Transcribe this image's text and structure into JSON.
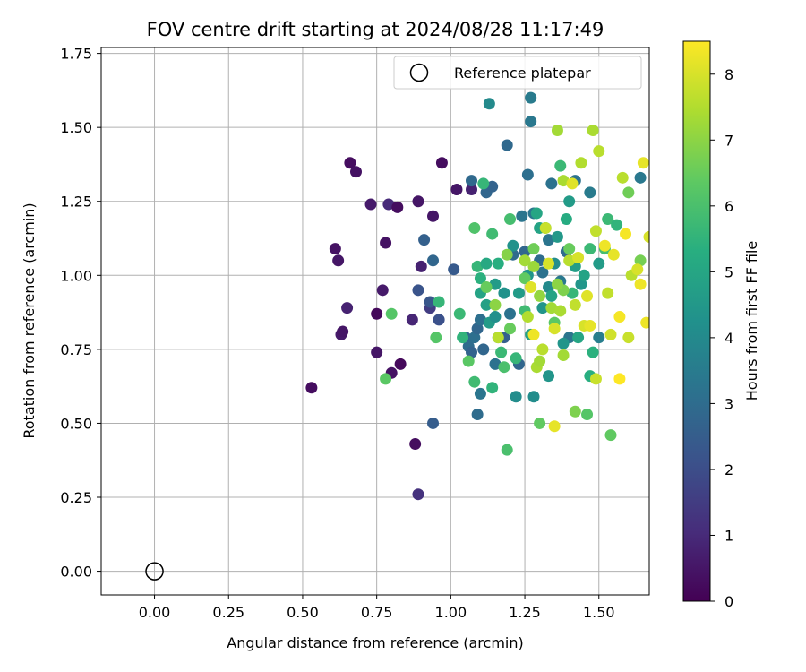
{
  "chart_data": {
    "type": "scatter",
    "title": "FOV centre drift starting at 2024/08/28 11:17:49",
    "xlabel": "Angular distance from reference (arcmin)",
    "ylabel": "Rotation from reference (arcmin)",
    "xlim": [
      -0.18,
      1.67
    ],
    "ylim": [
      -0.08,
      1.77
    ],
    "xticks": [
      0.0,
      0.25,
      0.5,
      0.75,
      1.0,
      1.25,
      1.5
    ],
    "xtick_labels": [
      "0.00",
      "0.25",
      "0.50",
      "0.75",
      "1.00",
      "1.25",
      "1.50"
    ],
    "yticks": [
      0.0,
      0.25,
      0.5,
      0.75,
      1.0,
      1.25,
      1.5,
      1.75
    ],
    "ytick_labels": [
      "0.00",
      "0.25",
      "0.50",
      "0.75",
      "1.00",
      "1.25",
      "1.50",
      "1.75"
    ],
    "grid": true,
    "legend": {
      "position": "top-right",
      "entries": [
        {
          "label": "Reference platepar",
          "marker": "open-circle"
        }
      ]
    },
    "reference_point": {
      "x": 0.0,
      "y": 0.0
    },
    "colorbar": {
      "label": "Hours from first FF file",
      "colormap": "viridis",
      "range": [
        0,
        8.5
      ],
      "ticks": [
        0,
        1,
        2,
        3,
        4,
        5,
        6,
        7,
        8
      ],
      "tick_labels": [
        "0",
        "1",
        "2",
        "3",
        "4",
        "5",
        "6",
        "7",
        "8"
      ]
    },
    "series": [
      {
        "points": [
          [
            0.53,
            0.62,
            0.3
          ],
          [
            0.61,
            1.09,
            0.4
          ],
          [
            0.62,
            1.05,
            0.5
          ],
          [
            0.63,
            0.8,
            0.6
          ],
          [
            0.635,
            0.81,
            0.5
          ],
          [
            0.65,
            0.89,
            0.8
          ],
          [
            0.66,
            1.38,
            0.3
          ],
          [
            0.68,
            1.35,
            0.4
          ],
          [
            0.73,
            1.24,
            0.6
          ],
          [
            0.75,
            0.87,
            0.2
          ],
          [
            0.75,
            0.74,
            0.5
          ],
          [
            0.77,
            0.95,
            0.6
          ],
          [
            0.78,
            1.11,
            0.4
          ],
          [
            0.79,
            1.24,
            1.0
          ],
          [
            0.8,
            0.67,
            0.4
          ],
          [
            0.82,
            1.23,
            0.3
          ],
          [
            0.83,
            0.7,
            0.2
          ],
          [
            0.87,
            0.85,
            0.9
          ],
          [
            0.88,
            0.43,
            0.3
          ],
          [
            0.89,
            1.25,
            0.5
          ],
          [
            0.89,
            0.26,
            1.2
          ],
          [
            0.9,
            1.03,
            0.8
          ],
          [
            0.93,
            0.89,
            1.5
          ],
          [
            0.94,
            1.2,
            0.5
          ],
          [
            0.97,
            1.38,
            0.3
          ],
          [
            1.02,
            1.29,
            0.5
          ],
          [
            1.07,
            1.29,
            0.8
          ],
          [
            0.89,
            0.95,
            2.2
          ],
          [
            0.91,
            1.12,
            2.6
          ],
          [
            0.93,
            0.91,
            2.3
          ],
          [
            0.94,
            1.05,
            2.8
          ],
          [
            0.94,
            0.5,
            2.5
          ],
          [
            0.96,
            0.85,
            2.1
          ],
          [
            1.01,
            1.02,
            2.4
          ],
          [
            1.05,
            0.79,
            2.9
          ],
          [
            1.06,
            0.76,
            3.0
          ],
          [
            1.07,
            0.74,
            2.7
          ],
          [
            1.07,
            1.32,
            2.9
          ],
          [
            1.08,
            0.79,
            3.1
          ],
          [
            1.09,
            0.82,
            2.8
          ],
          [
            1.09,
            0.53,
            3.0
          ],
          [
            1.1,
            0.6,
            3.3
          ],
          [
            1.1,
            0.85,
            3.1
          ],
          [
            1.11,
            0.75,
            2.8
          ],
          [
            1.12,
            1.28,
            2.8
          ],
          [
            1.14,
            1.3,
            2.7
          ],
          [
            1.15,
            0.7,
            3.2
          ],
          [
            1.16,
            0.79,
            3.0
          ],
          [
            1.18,
            0.79,
            2.6
          ],
          [
            1.19,
            1.44,
            2.9
          ],
          [
            1.2,
            0.87,
            3.2
          ],
          [
            1.21,
            1.07,
            3.0
          ],
          [
            1.23,
            0.7,
            2.8
          ],
          [
            1.24,
            1.2,
            3.3
          ],
          [
            1.25,
            1.08,
            2.8
          ],
          [
            1.26,
            1.34,
            3.1
          ],
          [
            1.27,
            1.52,
            3.4
          ],
          [
            1.27,
            1.6,
            3.5
          ],
          [
            1.28,
            1.21,
            3.3
          ],
          [
            1.3,
            1.05,
            3.0
          ],
          [
            1.31,
            1.01,
            3.2
          ],
          [
            1.33,
            1.12,
            3.3
          ],
          [
            1.34,
            1.31,
            3.2
          ],
          [
            1.37,
            0.98,
            3.4
          ],
          [
            1.39,
            1.08,
            3.0
          ],
          [
            1.4,
            0.79,
            3.3
          ],
          [
            1.42,
            1.32,
            3.2
          ],
          [
            1.47,
            1.28,
            3.5
          ],
          [
            1.5,
            0.79,
            3.6
          ],
          [
            1.64,
            1.33,
            3.4
          ],
          [
            0.96,
            0.91,
            5.6
          ],
          [
            1.03,
            0.87,
            5.7
          ],
          [
            1.04,
            0.79,
            5.5
          ],
          [
            1.08,
            0.64,
            5.8
          ],
          [
            1.09,
            1.03,
            5.6
          ],
          [
            1.1,
            0.99,
            5.4
          ],
          [
            1.1,
            0.94,
            4.9
          ],
          [
            1.11,
            1.31,
            5.6
          ],
          [
            1.12,
            1.04,
            5.1
          ],
          [
            1.12,
            0.9,
            4.8
          ],
          [
            1.13,
            1.58,
            4.0
          ],
          [
            1.13,
            0.84,
            4.6
          ],
          [
            1.14,
            0.62,
            5.5
          ],
          [
            1.14,
            1.14,
            5.8
          ],
          [
            1.15,
            0.86,
            4.2
          ],
          [
            1.15,
            0.97,
            4.6
          ],
          [
            1.16,
            1.04,
            5.3
          ],
          [
            1.17,
            0.74,
            5.7
          ],
          [
            1.18,
            0.69,
            6.0
          ],
          [
            1.18,
            0.94,
            4.3
          ],
          [
            1.19,
            0.41,
            6.0
          ],
          [
            1.2,
            1.19,
            5.9
          ],
          [
            1.21,
            1.1,
            4.3
          ],
          [
            1.22,
            0.72,
            5.6
          ],
          [
            1.22,
            0.59,
            4.1
          ],
          [
            1.23,
            0.94,
            4.6
          ],
          [
            1.25,
            0.88,
            5.8
          ],
          [
            1.26,
            1.0,
            4.4
          ],
          [
            1.27,
            0.8,
            4.8
          ],
          [
            1.28,
            0.59,
            4.1
          ],
          [
            1.29,
            1.21,
            5.0
          ],
          [
            1.3,
            1.16,
            4.9
          ],
          [
            1.31,
            0.89,
            4.4
          ],
          [
            1.32,
            1.16,
            5.3
          ],
          [
            1.33,
            0.96,
            4.0
          ],
          [
            1.34,
            0.93,
            4.9
          ],
          [
            1.35,
            1.04,
            4.1
          ],
          [
            1.36,
            1.13,
            4.5
          ],
          [
            1.37,
            1.37,
            5.7
          ],
          [
            1.38,
            0.77,
            4.4
          ],
          [
            1.39,
            1.19,
            5.2
          ],
          [
            1.4,
            1.25,
            4.6
          ],
          [
            1.41,
            0.94,
            5.6
          ],
          [
            1.42,
            1.03,
            4.7
          ],
          [
            1.43,
            0.79,
            5.0
          ],
          [
            1.44,
            0.97,
            4.4
          ],
          [
            1.45,
            1.0,
            4.9
          ],
          [
            1.46,
            0.53,
            6.2
          ],
          [
            1.47,
            1.09,
            5.7
          ],
          [
            1.47,
            0.66,
            5.3
          ],
          [
            1.48,
            0.74,
            5.4
          ],
          [
            1.5,
            1.04,
            4.6
          ],
          [
            1.52,
            1.09,
            5.9
          ],
          [
            1.53,
            1.19,
            5.7
          ],
          [
            1.54,
            0.46,
            6.4
          ],
          [
            1.56,
            1.17,
            5.5
          ],
          [
            1.6,
            1.28,
            6.6
          ],
          [
            1.64,
            1.05,
            6.7
          ],
          [
            0.8,
            0.87,
            6.2
          ],
          [
            0.78,
            0.65,
            6.3
          ],
          [
            0.95,
            0.79,
            6.2
          ],
          [
            1.06,
            0.71,
            6.3
          ],
          [
            1.08,
            1.16,
            6.1
          ],
          [
            1.12,
            0.96,
            6.5
          ],
          [
            1.2,
            0.82,
            6.5
          ],
          [
            1.25,
            0.99,
            6.4
          ],
          [
            1.28,
            1.09,
            6.6
          ],
          [
            1.3,
            0.5,
            6.4
          ],
          [
            1.33,
            0.66,
            4.4
          ],
          [
            1.35,
            0.84,
            6.3
          ],
          [
            1.4,
            1.09,
            6.5
          ],
          [
            1.42,
            0.54,
            6.8
          ],
          [
            1.15,
            0.9,
            7.0
          ],
          [
            1.16,
            0.79,
            7.6
          ],
          [
            1.19,
            1.07,
            6.9
          ],
          [
            1.25,
            1.05,
            7.3
          ],
          [
            1.27,
            0.96,
            8.1
          ],
          [
            1.28,
            1.03,
            7.2
          ],
          [
            1.28,
            0.8,
            8.3
          ],
          [
            1.29,
            0.69,
            7.4
          ],
          [
            1.3,
            0.71,
            7.3
          ],
          [
            1.31,
            0.75,
            7.6
          ],
          [
            1.32,
            1.16,
            7.8
          ],
          [
            1.33,
            1.04,
            8.0
          ],
          [
            1.34,
            0.89,
            7.3
          ],
          [
            1.35,
            0.82,
            8.0
          ],
          [
            1.35,
            0.49,
            8.2
          ],
          [
            1.36,
            1.49,
            7.3
          ],
          [
            1.37,
            0.88,
            7.4
          ],
          [
            1.38,
            0.73,
            7.3
          ],
          [
            1.38,
            1.32,
            7.4
          ],
          [
            1.4,
            1.05,
            7.6
          ],
          [
            1.41,
            1.31,
            8.1
          ],
          [
            1.42,
            0.9,
            7.7
          ],
          [
            1.43,
            1.06,
            8.0
          ],
          [
            1.44,
            1.38,
            7.5
          ],
          [
            1.45,
            0.83,
            8.0
          ],
          [
            1.46,
            0.93,
            8.1
          ],
          [
            1.47,
            0.83,
            8.2
          ],
          [
            1.48,
            1.49,
            7.4
          ],
          [
            1.49,
            1.15,
            7.7
          ],
          [
            1.49,
            0.65,
            7.8
          ],
          [
            1.5,
            1.42,
            7.6
          ],
          [
            1.52,
            1.1,
            8.3
          ],
          [
            1.53,
            0.94,
            7.7
          ],
          [
            1.54,
            0.8,
            7.9
          ],
          [
            1.55,
            1.07,
            8.2
          ],
          [
            1.57,
            0.86,
            8.4
          ],
          [
            1.58,
            1.33,
            7.6
          ],
          [
            1.59,
            1.14,
            8.4
          ],
          [
            1.6,
            0.79,
            7.8
          ],
          [
            1.61,
            1.0,
            7.6
          ],
          [
            1.63,
            1.02,
            8.0
          ],
          [
            1.64,
            0.97,
            8.3
          ],
          [
            1.65,
            1.38,
            8.2
          ],
          [
            1.66,
            0.84,
            8.3
          ],
          [
            1.67,
            1.13,
            8.0
          ],
          [
            1.57,
            0.65,
            8.5
          ],
          [
            1.38,
            0.95,
            6.8
          ],
          [
            1.36,
            0.97,
            7.0
          ],
          [
            1.3,
            0.93,
            7.1
          ],
          [
            1.26,
            0.86,
            7.5
          ]
        ]
      }
    ]
  }
}
